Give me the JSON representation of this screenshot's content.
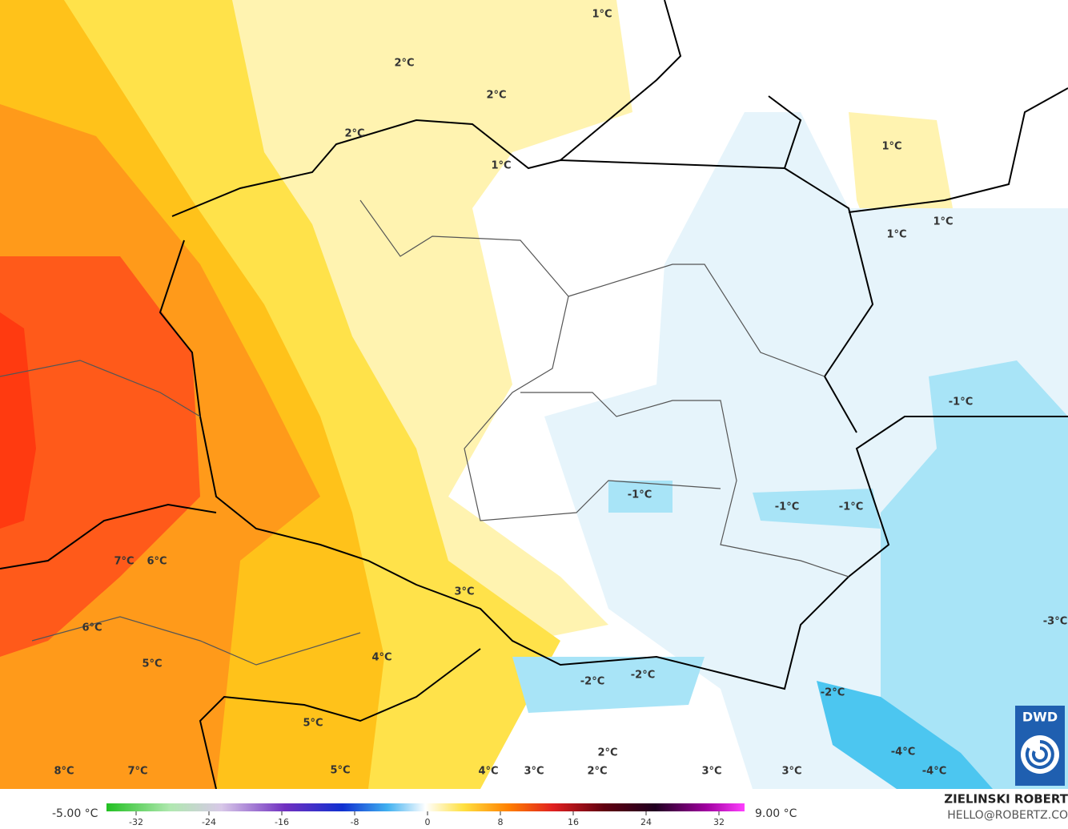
{
  "map": {
    "labels": [
      "1°C",
      "2°C",
      "2°C",
      "2°C",
      "1°C",
      "1°C",
      "1°C",
      "1°C",
      "-1°C",
      "-1°C",
      "-1°C",
      "-1°C",
      "7°C",
      "6°C",
      "3°C",
      "6°C",
      "5°C",
      "4°C",
      "-2°C",
      "-2°C",
      "-2°C",
      "5°C",
      "-4°C",
      "2°C",
      "8°C",
      "7°C",
      "5°C",
      "4°C",
      "3°C",
      "2°C",
      "3°C",
      "3°C",
      "-4°C",
      "-3°C"
    ]
  },
  "colorbar": {
    "min_label": "-5.00 °C",
    "max_label": "9.00 °C",
    "ticks": [
      -32,
      -24,
      -16,
      -8,
      0,
      8,
      16,
      24,
      32
    ]
  },
  "credit": {
    "author": "ZIELINSKI ROBERT",
    "email": "HELLO@ROBERTZ.CO"
  },
  "logo": "DWD"
}
